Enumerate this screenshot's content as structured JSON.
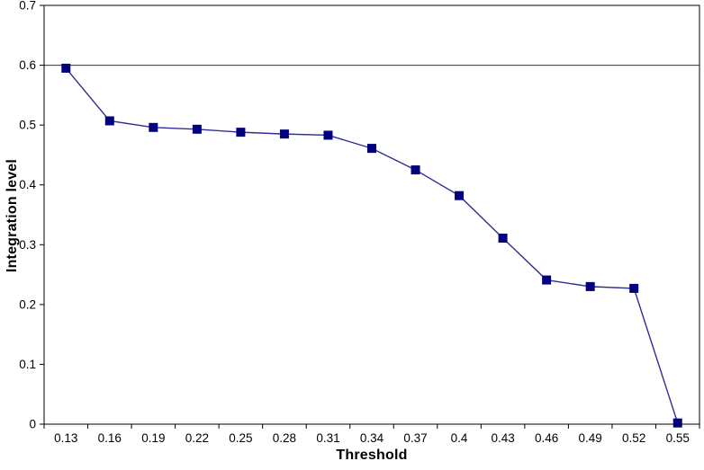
{
  "chart_data": {
    "type": "line",
    "title": "",
    "xlabel": "Threshold",
    "ylabel": "Integration level",
    "categories": [
      "0.13",
      "0.16",
      "0.19",
      "0.22",
      "0.25",
      "0.28",
      "0.31",
      "0.34",
      "0.37",
      "0.4",
      "0.43",
      "0.46",
      "0.49",
      "0.52",
      "0.55"
    ],
    "series": [
      {
        "name": "Integration level",
        "values": [
          0.595,
          0.507,
          0.496,
          0.493,
          0.488,
          0.485,
          0.483,
          0.461,
          0.425,
          0.382,
          0.311,
          0.241,
          0.23,
          0.227,
          0.002
        ]
      }
    ],
    "ylim": [
      0,
      0.7
    ],
    "y_ticks": [
      "0",
      "0.1",
      "0.2",
      "0.3",
      "0.4",
      "0.5",
      "0.6",
      "0.7"
    ],
    "reference_line_y": 0.6,
    "grid": "off",
    "legend": "none",
    "colors": {
      "series_line": "#2e2e96",
      "series_marker": "#000080",
      "axis": "#000000",
      "reference_line": "#333333",
      "background": "#ffffff",
      "tick_label": "#000000"
    },
    "marker": "square"
  }
}
